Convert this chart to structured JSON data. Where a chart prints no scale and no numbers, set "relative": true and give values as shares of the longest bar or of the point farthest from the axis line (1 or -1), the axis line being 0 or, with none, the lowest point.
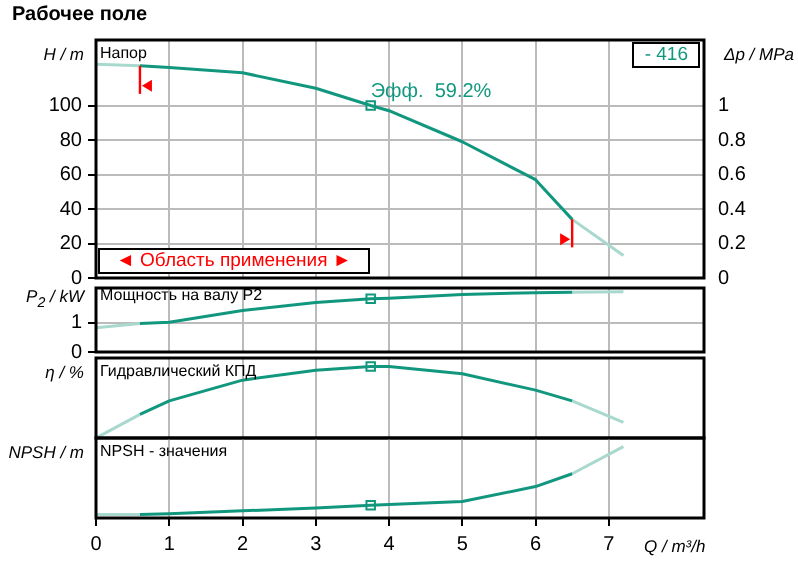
{
  "chart_data": [
    {
      "type": "line",
      "title": "Рабочее поле",
      "subtitle": "Напор",
      "ylabel": "H / m",
      "y2label": "Δp / MPa",
      "xlim": [
        0,
        8.3
      ],
      "xticks": [
        0,
        1,
        2,
        3,
        4,
        5,
        6,
        7
      ],
      "ylim": [
        0,
        138
      ],
      "yticks": [
        0,
        20,
        40,
        60,
        80,
        100
      ],
      "y2lim": [
        0,
        1.38
      ],
      "y2ticks": [
        0,
        0.2,
        0.4,
        0.6,
        0.8,
        1
      ],
      "grid": true,
      "tick_labels": "y",
      "annotations": [
        "- 416",
        "◄ Область применения ►",
        {
          "text": "Эфф.  59.2%",
          "x": 3.75,
          "y": 100
        }
      ],
      "series": [
        {
          "color": "#12977f",
          "x": [
            0.6,
            1,
            2,
            3,
            3.75,
            4,
            5,
            6,
            6.5
          ],
          "values": [
            123,
            122,
            119,
            110,
            100,
            97,
            79,
            57,
            34
          ]
        },
        {
          "color": "#a8d8ce",
          "x": [
            0,
            0.6,
            3,
            6.5,
            7.2
          ],
          "values": [
            124,
            123,
            null,
            34,
            13
          ]
        },
        {
          "type": "scatter",
          "marker": "square",
          "color": "#12977f",
          "x": [
            3.75
          ],
          "values": [
            100
          ]
        }
      ]
    },
    {
      "type": "line",
      "subtitle": "Мощность на валу P2",
      "ylabel": "P$_{2}$ / kW",
      "xlim": [
        0,
        8.3
      ],
      "xticks": [
        0,
        1,
        2,
        3,
        4,
        5,
        6,
        7
      ],
      "ylim": [
        0,
        2.2
      ],
      "yticks": [
        0,
        1
      ],
      "grid": true,
      "tick_labels": "y",
      "series": [
        {
          "color": "#12977f",
          "x": [
            0.6,
            1,
            2,
            3,
            3.75,
            4,
            5,
            6,
            6.5
          ],
          "values": [
            0.98,
            1.02,
            1.43,
            1.7,
            1.83,
            1.85,
            1.98,
            2.04,
            2.05
          ]
        },
        {
          "color": "#a8d8ce",
          "x": [
            0,
            0.6,
            3,
            6.5,
            7.2
          ],
          "values": [
            0.83,
            0.98,
            null,
            2.05,
            2.07
          ]
        },
        {
          "type": "scatter",
          "marker": "square",
          "color": "#12977f",
          "x": [
            3.75
          ],
          "values": [
            1.83
          ]
        }
      ]
    },
    {
      "type": "line",
      "subtitle": "Гидравлический КПД",
      "ylabel": "η / %",
      "xlim": [
        0,
        8.3
      ],
      "xticks": [
        0,
        1,
        2,
        3,
        4,
        5,
        6,
        7
      ],
      "relative": true,
      "grid": "x",
      "tick_labels": false,
      "series": [
        {
          "color": "#12977f",
          "x": [
            0.6,
            1,
            2,
            3,
            3.75,
            4,
            5,
            6,
            6.5
          ],
          "values": [
            0.33,
            0.52,
            0.81,
            0.95,
            1,
            1,
            0.9,
            0.67,
            0.52
          ]
        },
        {
          "color": "#a8d8ce",
          "x": [
            0,
            0.6,
            3,
            6.5,
            7.2
          ],
          "values": [
            0,
            0.33,
            null,
            0.52,
            0.22
          ]
        },
        {
          "type": "scatter",
          "marker": "square",
          "color": "#12977f",
          "x": [
            3.75
          ],
          "values": [
            1
          ]
        }
      ]
    },
    {
      "type": "line",
      "subtitle": "NPSH - значения",
      "ylabel": "NPSH  / m",
      "xlabel": "Q / m³/h",
      "xlim": [
        0,
        8.3
      ],
      "xticks": [
        0,
        1,
        2,
        3,
        4,
        5,
        6,
        7
      ],
      "relative": true,
      "grid": "x",
      "tick_labels": "x",
      "series": [
        {
          "color": "#12977f",
          "x": [
            0.6,
            1,
            2,
            3,
            3.75,
            4,
            5,
            6,
            6.5
          ],
          "values": [
            0.05,
            0.06,
            0.1,
            0.14,
            0.18,
            0.19,
            0.23,
            0.44,
            0.62
          ]
        },
        {
          "color": "#a8d8ce",
          "x": [
            0,
            0.6,
            3,
            6.5,
            7.2
          ],
          "values": [
            0.05,
            0.05,
            null,
            0.62,
            1
          ]
        },
        {
          "type": "scatter",
          "marker": "square",
          "color": "#12977f",
          "x": [
            3.75
          ],
          "values": [
            0.18
          ]
        }
      ]
    }
  ]
}
